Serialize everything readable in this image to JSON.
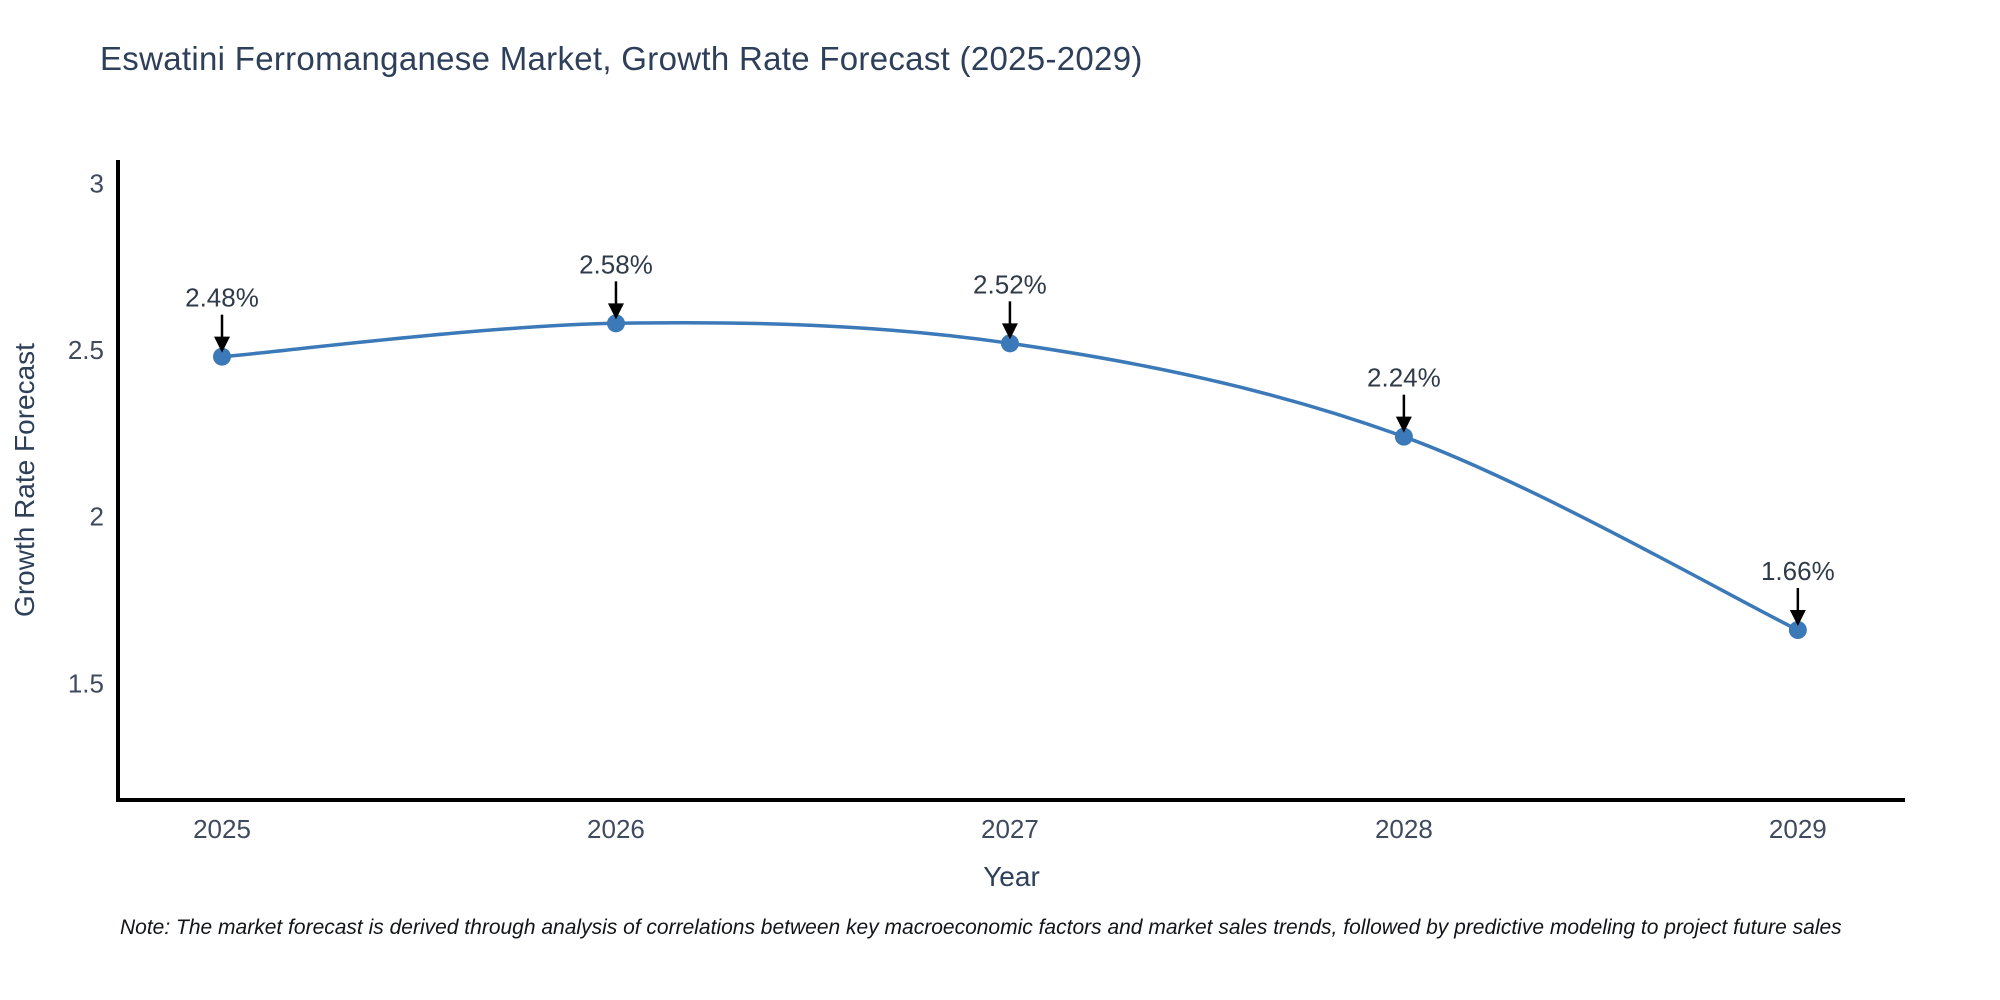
{
  "page": {
    "background": "#ffffff"
  },
  "chart_data": {
    "type": "line",
    "title": "Eswatini Ferromanganese Market, Growth Rate Forecast (2025-2029)",
    "xlabel": "Year",
    "ylabel": "Growth Rate Forecast",
    "x": [
      2025,
      2026,
      2027,
      2028,
      2029
    ],
    "y": [
      2.48,
      2.58,
      2.52,
      2.24,
      1.66
    ],
    "point_labels": [
      "2.48%",
      "2.58%",
      "2.52%",
      "2.24%",
      "1.66%"
    ],
    "xtick_labels": [
      "2025",
      "2026",
      "2027",
      "2028",
      "2029"
    ],
    "ytick_values": [
      1.5,
      2,
      2.5,
      3
    ],
    "ytick_labels": [
      "1.5",
      "2",
      "2.5",
      "3"
    ],
    "xlim": [
      2024.736,
      2029.272
    ],
    "ylim": [
      1.15,
      3.07
    ],
    "line_shape": "spline",
    "grid": false,
    "legend": "none",
    "colors": {
      "line": "#3b79b8",
      "marker": "#3b79b8",
      "axis": "#000000",
      "arrow": "#000000"
    }
  },
  "note": {
    "text": "Note: The market forecast is derived through analysis of correlations between key macroeconomic factors and market sales trends, followed by predictive modeling to project future sales"
  }
}
